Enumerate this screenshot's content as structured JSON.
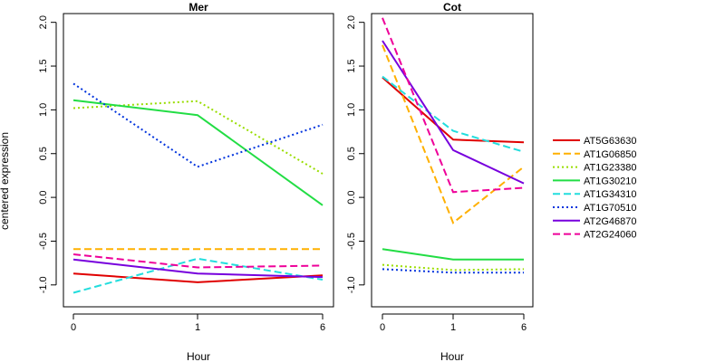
{
  "chart_data": {
    "type": "line",
    "ylabel": "centered expression",
    "xlabel": "Hour",
    "x_ticks": [
      "0",
      "1",
      "6"
    ],
    "y_ticks": [
      "-1.0",
      "-0.5",
      "0.0",
      "0.5",
      "1.0",
      "1.5",
      "2.0"
    ],
    "y_tick_values": [
      -1.0,
      -0.5,
      0.0,
      0.5,
      1.0,
      1.5,
      2.0
    ],
    "ylim": [
      -1.25,
      2.1
    ],
    "legend_position": "right",
    "series_styles": [
      {
        "name": "AT5G63630",
        "color": "#e00000",
        "dash": "solid"
      },
      {
        "name": "AT1G06850",
        "color": "#ffb000",
        "dash": "dashed"
      },
      {
        "name": "AT1G23380",
        "color": "#99dd00",
        "dash": "dotted"
      },
      {
        "name": "AT1G30210",
        "color": "#22dd44",
        "dash": "solid"
      },
      {
        "name": "AT1G34310",
        "color": "#22dddd",
        "dash": "dashed"
      },
      {
        "name": "AT1G70510",
        "color": "#0033dd",
        "dash": "dotted"
      },
      {
        "name": "AT2G46870",
        "color": "#7700dd",
        "dash": "solid"
      },
      {
        "name": "AT2G24060",
        "color": "#ee0099",
        "dash": "dashed"
      }
    ],
    "panels": [
      {
        "title": "Mer",
        "series": [
          {
            "name": "AT5G63630",
            "values": [
              -0.87,
              -0.97,
              -0.89
            ]
          },
          {
            "name": "AT1G06850",
            "values": [
              -0.59,
              -0.59,
              -0.59
            ]
          },
          {
            "name": "AT1G23380",
            "values": [
              1.02,
              1.1,
              0.27
            ]
          },
          {
            "name": "AT1G30210",
            "values": [
              1.11,
              0.94,
              -0.09
            ]
          },
          {
            "name": "AT1G34310",
            "values": [
              -1.09,
              -0.7,
              -0.94
            ]
          },
          {
            "name": "AT1G70510",
            "values": [
              1.3,
              0.35,
              0.83
            ]
          },
          {
            "name": "AT2G46870",
            "values": [
              -0.71,
              -0.87,
              -0.91
            ]
          },
          {
            "name": "AT2G24060",
            "values": [
              -0.65,
              -0.8,
              -0.78
            ]
          }
        ]
      },
      {
        "title": "Cot",
        "series": [
          {
            "name": "AT5G63630",
            "values": [
              1.37,
              0.66,
              0.63
            ]
          },
          {
            "name": "AT1G06850",
            "values": [
              1.74,
              -0.29,
              0.35
            ]
          },
          {
            "name": "AT1G23380",
            "values": [
              -0.77,
              -0.83,
              -0.82
            ]
          },
          {
            "name": "AT1G30210",
            "values": [
              -0.59,
              -0.71,
              -0.71
            ]
          },
          {
            "name": "AT1G34310",
            "values": [
              1.38,
              0.76,
              0.52
            ]
          },
          {
            "name": "AT1G70510",
            "values": [
              -0.82,
              -0.86,
              -0.86
            ]
          },
          {
            "name": "AT2G46870",
            "values": [
              1.79,
              0.54,
              0.16
            ]
          },
          {
            "name": "AT2G24060",
            "values": [
              2.05,
              0.06,
              0.11
            ]
          }
        ]
      }
    ]
  }
}
